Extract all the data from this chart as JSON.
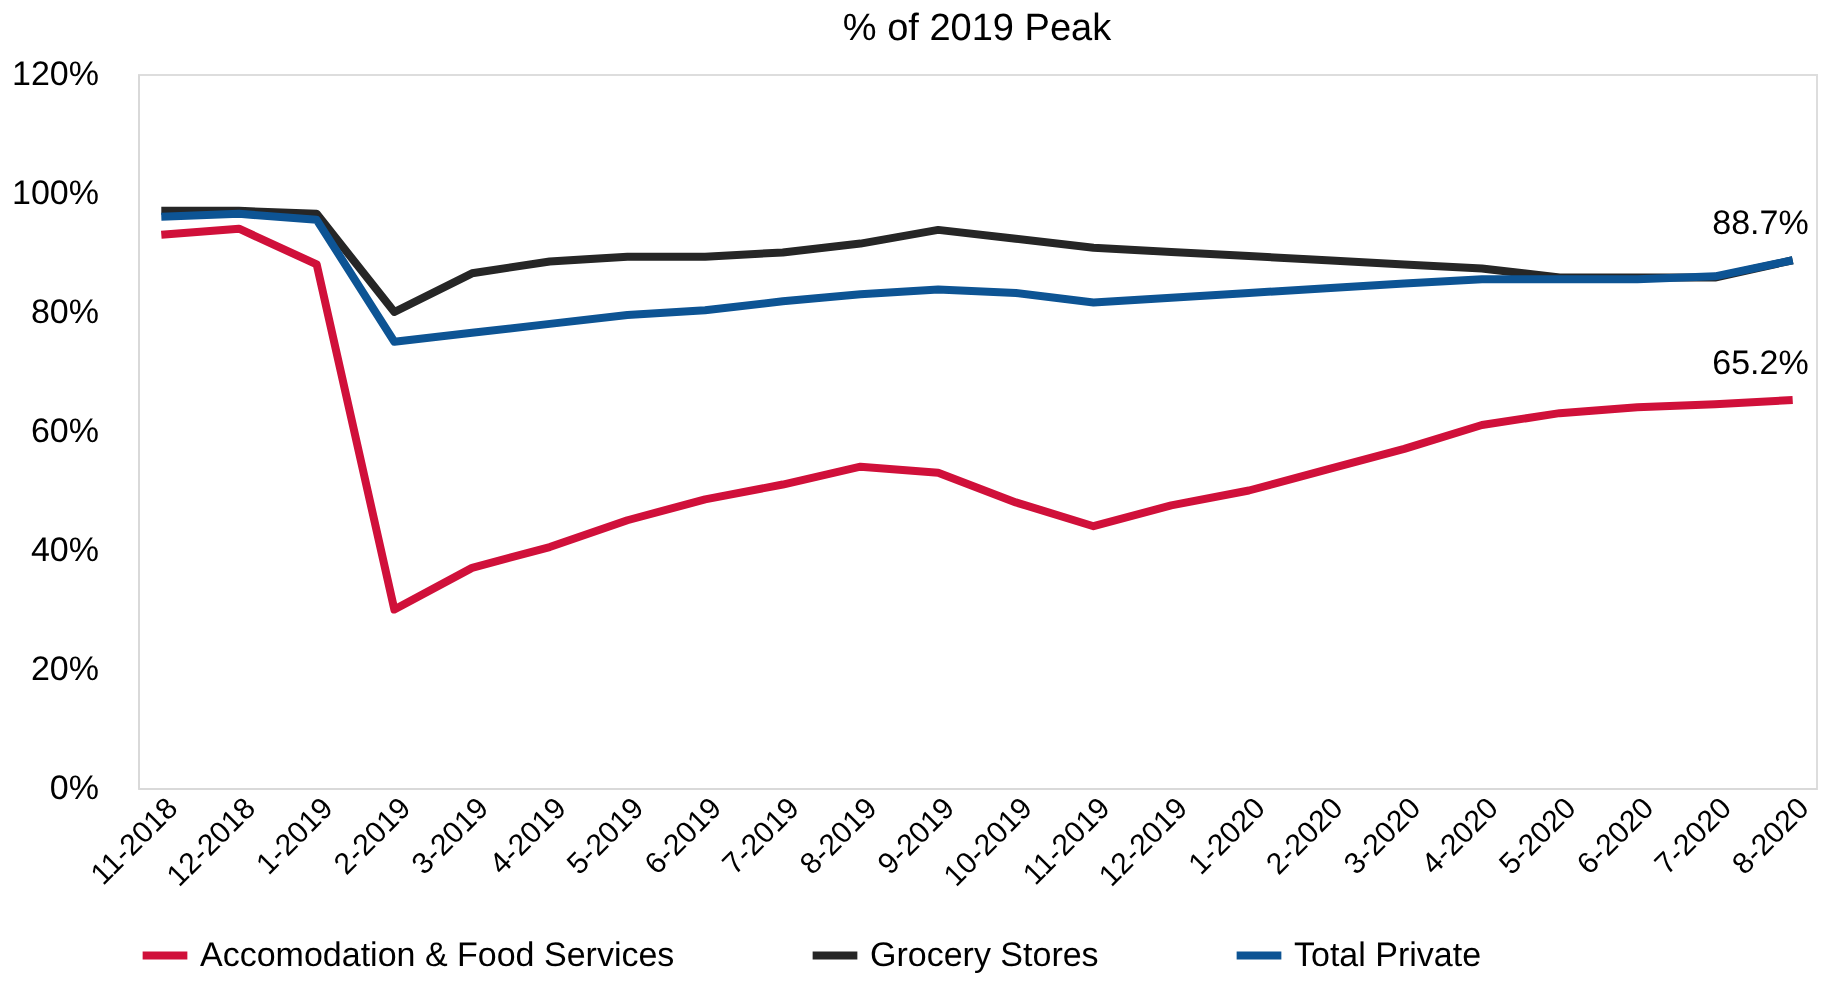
{
  "chart_data": {
    "type": "line",
    "title": "% of 2019 Peak",
    "categories": [
      "11-2018",
      "12-2018",
      "1-2019",
      "2-2019",
      "3-2019",
      "4-2019",
      "5-2019",
      "6-2019",
      "7-2019",
      "8-2019",
      "9-2019",
      "10-2019",
      "11-2019",
      "12-2019",
      "1-2020",
      "2-2020",
      "3-2020",
      "4-2020",
      "5-2020",
      "6-2020",
      "7-2020",
      "8-2020"
    ],
    "series": [
      {
        "name": "Accomodation & Food Services",
        "color": "#d0103a",
        "values": [
          93,
          94,
          88,
          30,
          37,
          40.5,
          45,
          48.5,
          51,
          54,
          53,
          48,
          44,
          47.5,
          50,
          53.5,
          57,
          61,
          63,
          64,
          64.5,
          65.2
        ]
      },
      {
        "name": "Grocery Stores",
        "color": "#262626",
        "values": [
          97,
          97,
          96.5,
          80,
          86.5,
          88.5,
          89.3,
          89.3,
          90,
          91.5,
          93.8,
          92.3,
          90.8,
          90.1,
          89.4,
          88.7,
          88,
          87.3,
          85.8,
          85.8,
          85.8,
          88.7
        ]
      },
      {
        "name": "Total Private",
        "color": "#0d5494",
        "values": [
          96,
          96.5,
          95.5,
          75,
          76.5,
          78,
          79.5,
          80.3,
          81.8,
          83,
          83.8,
          83.2,
          81.6,
          82.4,
          83.2,
          84,
          84.8,
          85.5,
          85.5,
          85.5,
          86,
          88.7
        ]
      }
    ],
    "ylim": [
      0,
      120
    ],
    "yticks": [
      {
        "value": 0,
        "label": "0%"
      },
      {
        "value": 20,
        "label": "20%"
      },
      {
        "value": 40,
        "label": "40%"
      },
      {
        "value": 60,
        "label": "60%"
      },
      {
        "value": 80,
        "label": "80%"
      },
      {
        "value": 100,
        "label": "100%"
      },
      {
        "value": 120,
        "label": "120%"
      }
    ],
    "annotations": [
      {
        "text": "88.7%",
        "x": "8-2020",
        "y": 88.7
      },
      {
        "text": "65.2%",
        "x": "8-2020",
        "y": 65.2
      }
    ],
    "grid": false,
    "legend": "bottom",
    "marker": "none",
    "line_style": "solid"
  }
}
